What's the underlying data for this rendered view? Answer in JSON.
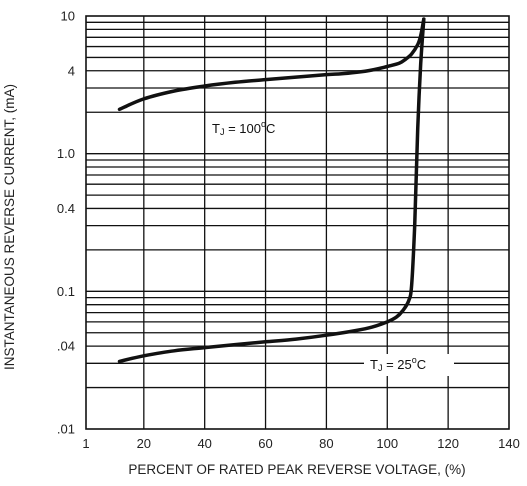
{
  "chart_data": {
    "type": "line",
    "title": "",
    "xlabel": "PERCENT OF RATED PEAK REVERSE VOLTAGE, (%)",
    "ylabel": "INSTANTANEOUS REVERSE CURRENT, (mA)",
    "x_tick_labels": [
      "1",
      "20",
      "40",
      "60",
      "80",
      "100",
      "120",
      "140"
    ],
    "y_tick_labels": [
      ".01",
      ".04",
      "0.1",
      "0.4",
      "1.0",
      "4",
      "10"
    ],
    "x_ticks": [
      1,
      20,
      40,
      60,
      80,
      100,
      120,
      140
    ],
    "y_ticks": [
      0.01,
      0.04,
      0.1,
      0.4,
      1.0,
      4,
      10
    ],
    "xlim": [
      1,
      140
    ],
    "ylim": [
      0.01,
      10
    ],
    "yscale": "log",
    "grid": true,
    "series": [
      {
        "name": "TJ = 100°C",
        "x": [
          12,
          20,
          30,
          40,
          50,
          60,
          70,
          80,
          85,
          90,
          95,
          100,
          104,
          106,
          108,
          110,
          111,
          112
        ],
        "y": [
          2.1,
          2.5,
          2.85,
          3.1,
          3.3,
          3.45,
          3.6,
          3.75,
          3.8,
          3.9,
          4.05,
          4.3,
          4.55,
          4.85,
          5.3,
          6.2,
          7.2,
          9.5
        ]
      },
      {
        "name": "TJ = 25°C",
        "x": [
          12,
          20,
          30,
          40,
          50,
          60,
          70,
          80,
          90,
          95,
          100,
          103,
          105,
          107,
          108,
          109,
          110,
          111,
          112
        ],
        "y": [
          0.031,
          0.034,
          0.037,
          0.039,
          0.041,
          0.043,
          0.045,
          0.048,
          0.052,
          0.055,
          0.06,
          0.065,
          0.072,
          0.085,
          0.11,
          0.3,
          1.5,
          4.5,
          9.5
        ]
      }
    ],
    "annotations": [
      {
        "base": "T",
        "sub": "J",
        "rest": " = 100",
        "sup": "o",
        "unit": "C",
        "series": "TJ = 100°C"
      },
      {
        "base": "T",
        "sub": "J",
        "rest": " = 25",
        "sup": "o",
        "unit": "C",
        "series": "TJ = 25°C"
      }
    ]
  }
}
